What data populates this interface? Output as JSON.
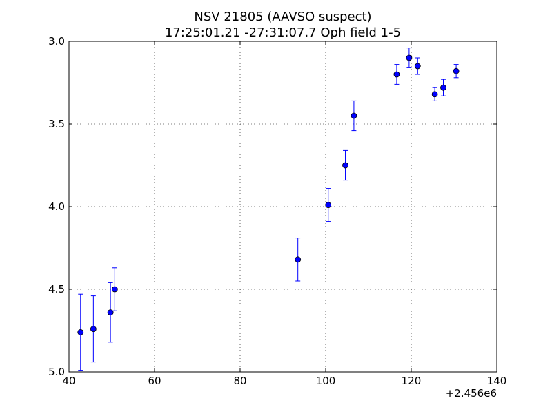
{
  "chart_data": {
    "type": "scatter",
    "title_lines": [
      "NSV 21805  (AAVSO suspect)",
      "17:25:01.21 -27:31:07.7 Oph field 1-5"
    ],
    "xlabel": "",
    "ylabel": "",
    "x_offset_label": "+2.456e6",
    "xlim": [
      40,
      140
    ],
    "ylim": [
      5.0,
      3.0
    ],
    "y_inverted": true,
    "x_ticks": [
      40,
      60,
      80,
      100,
      120,
      140
    ],
    "x_tick_labels": [
      "40",
      "60",
      "80",
      "100",
      "120",
      "140"
    ],
    "y_ticks": [
      3.0,
      3.5,
      4.0,
      4.5,
      5.0
    ],
    "y_tick_labels": [
      "3.0",
      "3.5",
      "4.0",
      "4.5",
      "5.0"
    ],
    "grid": true,
    "marker_color": "#0000ff",
    "marker_edge_color": "#000000",
    "series": [
      {
        "points": [
          {
            "x": 42.7,
            "y": 4.76,
            "err": 0.23
          },
          {
            "x": 45.7,
            "y": 4.74,
            "err": 0.2
          },
          {
            "x": 49.7,
            "y": 4.64,
            "err": 0.18
          },
          {
            "x": 50.7,
            "y": 4.5,
            "err": 0.13
          },
          {
            "x": 93.5,
            "y": 4.32,
            "err": 0.13
          },
          {
            "x": 100.6,
            "y": 3.99,
            "err": 0.1
          },
          {
            "x": 104.6,
            "y": 3.75,
            "err": 0.09
          },
          {
            "x": 106.6,
            "y": 3.45,
            "err": 0.09
          },
          {
            "x": 116.6,
            "y": 3.2,
            "err": 0.06
          },
          {
            "x": 119.5,
            "y": 3.1,
            "err": 0.06
          },
          {
            "x": 121.5,
            "y": 3.15,
            "err": 0.05
          },
          {
            "x": 125.5,
            "y": 3.32,
            "err": 0.04
          },
          {
            "x": 127.5,
            "y": 3.28,
            "err": 0.05
          },
          {
            "x": 130.5,
            "y": 3.18,
            "err": 0.04
          }
        ]
      }
    ]
  }
}
